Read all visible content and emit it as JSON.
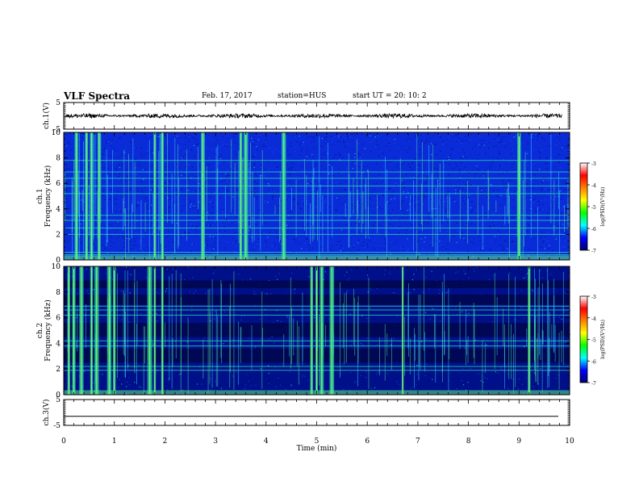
{
  "header": {
    "title": "VLF Spectra",
    "date": "Feb. 17, 2017",
    "station": "station=HUS",
    "start": "start  UT =   20: 10: 2"
  },
  "colorbar": {
    "colors": [
      "#000070",
      "#0000ff",
      "#00ffff",
      "#00ff00",
      "#ffff00",
      "#ff8000",
      "#ff0000",
      "#ffffff"
    ],
    "label": "log(PSD)(V²/Hz)",
    "ticks": [
      "-3",
      "-4",
      "-5",
      "-6",
      "-7"
    ]
  },
  "chart_data": [
    {
      "type": "line",
      "ylabel": "ch.1(V)",
      "ylim": [
        -5,
        5
      ],
      "yticks": [
        "5",
        "-5"
      ],
      "x": [
        0,
        10
      ],
      "values": "noisy oscillation around 0 V, amplitude about ±0.6 V"
    },
    {
      "type": "heatmap",
      "ylabel": "ch.1 Frequency (kHz)",
      "ylim": [
        0,
        10
      ],
      "yticks": [
        "0",
        "2",
        "4",
        "6",
        "8",
        "10"
      ],
      "xlim": [
        0,
        10
      ],
      "background_log_psd": -6.3,
      "horizontal_lines_khz": [
        0.4,
        0.6,
        2.0,
        2.5,
        3.1,
        3.5,
        5.2,
        5.8,
        6.4,
        6.9,
        7.8
      ],
      "bursts_min": [
        0.25,
        0.45,
        0.55,
        0.7,
        1.8,
        1.95,
        2.75,
        3.5,
        3.6,
        4.35,
        9.0
      ]
    },
    {
      "type": "heatmap",
      "ylabel": "ch.2 Frequency (kHz)",
      "ylim": [
        0,
        10
      ],
      "yticks": [
        "0",
        "2",
        "4",
        "6",
        "8",
        "10"
      ],
      "xlim": [
        0,
        10
      ],
      "background_log_psd": -6.5,
      "dark_bands_khz": [
        [
          2.5,
          3.6
        ],
        [
          4.5,
          5.6
        ],
        [
          7.0,
          7.8
        ],
        [
          8.3,
          8.9
        ]
      ],
      "horizontal_lines_khz": [
        1.9,
        2.2,
        3.8,
        4.2,
        6.2,
        6.6,
        6.9
      ],
      "bursts_min": [
        0.1,
        0.2,
        0.35,
        0.55,
        0.65,
        0.9,
        1.0,
        1.7,
        1.8,
        1.95,
        4.9,
        5.0,
        5.1,
        5.3,
        6.7,
        9.2
      ]
    },
    {
      "type": "line",
      "ylabel": "ch.3(V)",
      "ylim": [
        -5,
        5
      ],
      "yticks": [
        "5",
        "-5"
      ],
      "x": [
        0,
        10
      ],
      "y": [
        -1.5,
        -1.5
      ]
    }
  ],
  "xaxis": {
    "label": "Time  (min)",
    "ticks": [
      "0",
      "1",
      "2",
      "3",
      "4",
      "5",
      "6",
      "7",
      "8",
      "9",
      "10"
    ]
  }
}
